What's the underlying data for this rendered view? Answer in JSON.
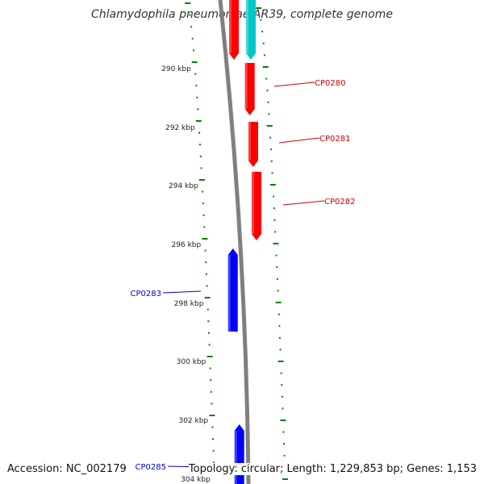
{
  "title": "Chlamydophila pneumoniae AR39, complete genome",
  "footer": {
    "accession": "Accession: NC_002179",
    "summary": "Topology: circular; Length: 1,229,853 bp; Genes: 1,153"
  },
  "colors": {
    "backbone": "#808080",
    "forward_gene": "#ff0000",
    "reverse_gene": "#0000ff",
    "other_gene": "#00c8c8",
    "tick": "#008000",
    "forward_label": "#cc0000",
    "reverse_label": "#0000cc"
  },
  "ruler": {
    "unit": "kbp",
    "labels": [
      "290 kbp",
      "292 kbp",
      "294 kbp",
      "296 kbp",
      "298 kbp",
      "300 kbp",
      "302 kbp",
      "304 kbp"
    ]
  },
  "genes": [
    {
      "label": "CP0280",
      "strand": "forward"
    },
    {
      "label": "CP0281",
      "strand": "forward"
    },
    {
      "label": "CP0282",
      "strand": "forward"
    },
    {
      "label": "CP0283",
      "strand": "reverse"
    },
    {
      "label": "CP0285",
      "strand": "reverse"
    }
  ]
}
